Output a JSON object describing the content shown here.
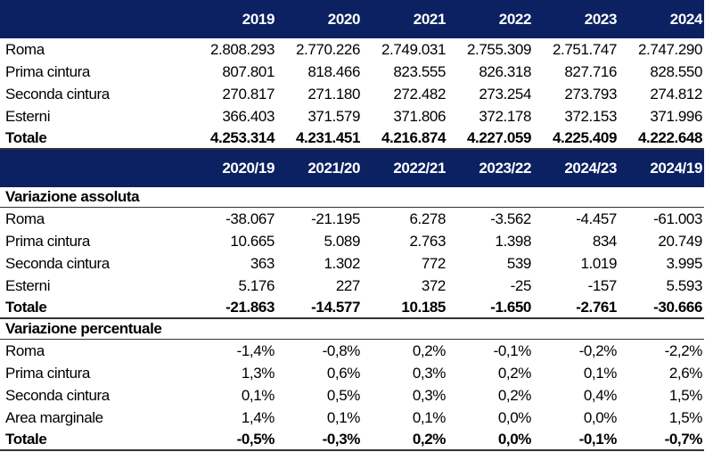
{
  "colors": {
    "header_bg": "#0b2161",
    "header_text": "#ffffff"
  },
  "levels": {
    "headers": [
      "2019",
      "2020",
      "2021",
      "2022",
      "2023",
      "2024"
    ],
    "rows": [
      {
        "label": "Roma",
        "values": [
          "2.808.293",
          "2.770.226",
          "2.749.031",
          "2.755.309",
          "2.751.747",
          "2.747.290"
        ]
      },
      {
        "label": "Prima cintura",
        "values": [
          "807.801",
          "818.466",
          "823.555",
          "826.318",
          "827.716",
          "828.550"
        ]
      },
      {
        "label": "Seconda cintura",
        "values": [
          "270.817",
          "271.180",
          "272.482",
          "273.254",
          "273.793",
          "274.812"
        ]
      },
      {
        "label": "Esterni",
        "values": [
          "366.403",
          "371.579",
          "371.806",
          "372.178",
          "372.153",
          "371.996"
        ]
      }
    ],
    "total": {
      "label": "Totale",
      "values": [
        "4.253.314",
        "4.231.451",
        "4.216.874",
        "4.227.059",
        "4.225.409",
        "4.222.648"
      ]
    }
  },
  "changes": {
    "headers": [
      "2020/19",
      "2021/20",
      "2022/21",
      "2023/22",
      "2024/23",
      "2024/19"
    ],
    "absolute": {
      "title": "Variazione assoluta",
      "rows": [
        {
          "label": "Roma",
          "values": [
            "-38.067",
            "-21.195",
            "6.278",
            "-3.562",
            "-4.457",
            "-61.003"
          ]
        },
        {
          "label": "Prima cintura",
          "values": [
            "10.665",
            "5.089",
            "2.763",
            "1.398",
            "834",
            "20.749"
          ]
        },
        {
          "label": "Seconda cintura",
          "values": [
            "363",
            "1.302",
            "772",
            "539",
            "1.019",
            "3.995"
          ]
        },
        {
          "label": "Esterni",
          "values": [
            "5.176",
            "227",
            "372",
            "-25",
            "-157",
            "5.593"
          ]
        }
      ],
      "total": {
        "label": "Totale",
        "values": [
          "-21.863",
          "-14.577",
          "10.185",
          "-1.650",
          "-2.761",
          "-30.666"
        ]
      }
    },
    "percent": {
      "title": "Variazione percentuale",
      "rows": [
        {
          "label": "Roma",
          "values": [
            "-1,4%",
            "-0,8%",
            "0,2%",
            "-0,1%",
            "-0,2%",
            "-2,2%"
          ]
        },
        {
          "label": "Prima cintura",
          "values": [
            "1,3%",
            "0,6%",
            "0,3%",
            "0,2%",
            "0,1%",
            "2,6%"
          ]
        },
        {
          "label": "Seconda cintura",
          "values": [
            "0,1%",
            "0,5%",
            "0,3%",
            "0,2%",
            "0,4%",
            "1,5%"
          ]
        },
        {
          "label": "Area marginale",
          "values": [
            "1,4%",
            "0,1%",
            "0,1%",
            "0,0%",
            "0,0%",
            "1,5%"
          ]
        }
      ],
      "total": {
        "label": "Totale",
        "values": [
          "-0,5%",
          "-0,3%",
          "0,2%",
          "0,0%",
          "-0,1%",
          "-0,7%"
        ]
      }
    }
  }
}
